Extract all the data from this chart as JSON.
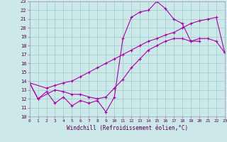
{
  "xlabel": "Windchill (Refroidissement éolien,°C)",
  "xlim": [
    0,
    23
  ],
  "ylim": [
    10,
    23
  ],
  "yticks": [
    10,
    11,
    12,
    13,
    14,
    15,
    16,
    17,
    18,
    19,
    20,
    21,
    22,
    23
  ],
  "xticks": [
    0,
    1,
    2,
    3,
    4,
    5,
    6,
    7,
    8,
    9,
    10,
    11,
    12,
    13,
    14,
    15,
    16,
    17,
    18,
    19,
    20,
    21,
    22,
    23
  ],
  "bg_color": "#cce8e8",
  "line_color": "#aa00aa",
  "grid_color": "#99cccc",
  "line1_x": [
    0,
    1,
    2,
    3,
    4,
    5,
    6,
    7,
    8,
    9,
    10,
    11,
    12,
    13,
    14,
    15,
    16,
    17,
    18,
    19,
    20
  ],
  "line1_y": [
    13.8,
    12.0,
    12.8,
    11.5,
    12.2,
    11.2,
    11.8,
    11.5,
    11.8,
    10.5,
    12.2,
    18.8,
    21.2,
    21.8,
    22.0,
    23.0,
    22.2,
    21.0,
    20.5,
    18.5,
    18.5
  ],
  "line2_x": [
    0,
    1,
    3,
    4,
    5,
    6,
    7,
    8,
    9,
    10,
    11,
    12,
    13,
    14,
    15,
    16,
    17,
    18,
    19,
    20,
    21,
    22,
    23
  ],
  "line2_y": [
    13.8,
    12.0,
    13.0,
    12.8,
    12.5,
    12.5,
    12.2,
    12.0,
    12.2,
    13.2,
    14.2,
    15.5,
    16.5,
    17.5,
    18.0,
    18.5,
    18.8,
    18.8,
    18.5,
    18.8,
    18.8,
    18.5,
    17.2
  ],
  "line3_x": [
    0,
    2,
    3,
    4,
    5,
    6,
    7,
    8,
    9,
    10,
    11,
    12,
    13,
    14,
    15,
    16,
    17,
    18,
    19,
    20,
    21,
    22,
    23
  ],
  "line3_y": [
    13.8,
    13.2,
    13.5,
    13.8,
    14.0,
    14.5,
    15.0,
    15.5,
    16.0,
    16.5,
    17.0,
    17.5,
    18.0,
    18.5,
    18.8,
    19.2,
    19.5,
    20.0,
    20.5,
    20.8,
    21.0,
    21.2,
    17.2
  ]
}
